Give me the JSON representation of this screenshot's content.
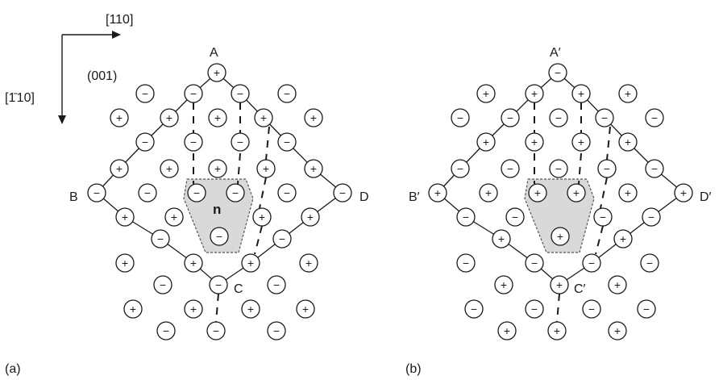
{
  "axes": {
    "x_dir": "[110]",
    "y_dir": "[1̄ 10]",
    "plane": "(001)"
  },
  "panel_a": {
    "label": "(a)",
    "corners": {
      "top": "A",
      "left": "B",
      "right": "D",
      "bottom": "C"
    },
    "site_label": "n",
    "ions": [
      {
        "row": 0,
        "charges": "+"
      },
      {
        "row": 1,
        "charges": "− − − −"
      },
      {
        "row": 2,
        "charges": "+ + + + +"
      },
      {
        "row": 3,
        "charges": "− − − − −"
      },
      {
        "row": 4,
        "charges": "+ + + + +"
      },
      {
        "row": 5,
        "charges": "− − − − − − −"
      },
      {
        "row": 6,
        "charges": "+ + + +"
      },
      {
        "row": 7,
        "charges": "− − − −"
      },
      {
        "row": 8,
        "charges": "+ + + + +"
      },
      {
        "row": 9,
        "charges": "− − − −"
      },
      {
        "row": 10,
        "charges": "+ + + + +"
      },
      {
        "row": 11,
        "charges": "− − −"
      }
    ]
  },
  "panel_b": {
    "label": "(b)",
    "corners": {
      "top": "A′",
      "left": "B′",
      "right": "D′",
      "bottom": "C′"
    }
  },
  "ion_symbols": {
    "plus": "+",
    "minus": "−"
  }
}
